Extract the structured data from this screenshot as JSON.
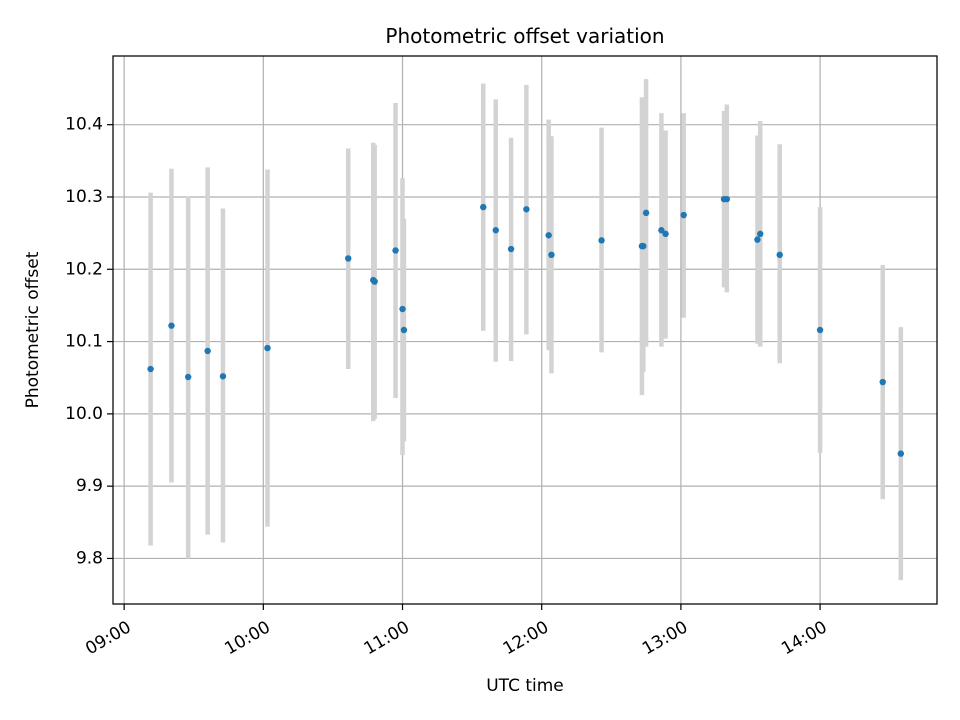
{
  "chart_data": {
    "type": "scatter",
    "title": "Photometric offset variation",
    "xlabel": "UTC time",
    "ylabel": "Photometric offset",
    "xlim_hours": [
      8.92,
      14.84
    ],
    "ylim": [
      9.737,
      10.495
    ],
    "grid": true,
    "x_ticks": [
      {
        "hour": 9,
        "label": "09:00"
      },
      {
        "hour": 10,
        "label": "10:00"
      },
      {
        "hour": 11,
        "label": "11:00"
      },
      {
        "hour": 12,
        "label": "12:00"
      },
      {
        "hour": 13,
        "label": "13:00"
      },
      {
        "hour": 14,
        "label": "14:00"
      }
    ],
    "y_ticks": [
      {
        "value": 9.8,
        "label": "9.8"
      },
      {
        "value": 9.9,
        "label": "9.9"
      },
      {
        "value": 10.0,
        "label": "10.0"
      },
      {
        "value": 10.1,
        "label": "10.1"
      },
      {
        "value": 10.2,
        "label": "10.2"
      },
      {
        "value": 10.3,
        "label": "10.3"
      },
      {
        "value": 10.4,
        "label": "10.4"
      }
    ],
    "colors": {
      "point": "#1f77b4",
      "errorbar": "#d3d3d3",
      "grid": "#b0b0b0",
      "axis": "#000000"
    },
    "points": [
      {
        "t": 9.19,
        "y": 10.062,
        "lo": 9.818,
        "hi": 10.306
      },
      {
        "t": 9.34,
        "y": 10.122,
        "lo": 9.905,
        "hi": 10.339
      },
      {
        "t": 9.46,
        "y": 10.051,
        "lo": 9.8,
        "hi": 10.301
      },
      {
        "t": 9.6,
        "y": 10.087,
        "lo": 9.833,
        "hi": 10.341
      },
      {
        "t": 9.71,
        "y": 10.052,
        "lo": 9.822,
        "hi": 10.284
      },
      {
        "t": 10.03,
        "y": 10.091,
        "lo": 9.844,
        "hi": 10.338
      },
      {
        "t": 10.61,
        "y": 10.215,
        "lo": 10.062,
        "hi": 10.367
      },
      {
        "t": 10.79,
        "y": 10.185,
        "lo": 9.99,
        "hi": 10.375
      },
      {
        "t": 10.8,
        "y": 10.183,
        "lo": 9.993,
        "hi": 10.372
      },
      {
        "t": 10.95,
        "y": 10.226,
        "lo": 10.022,
        "hi": 10.43
      },
      {
        "t": 11.0,
        "y": 10.145,
        "lo": 9.943,
        "hi": 10.326
      },
      {
        "t": 11.01,
        "y": 10.116,
        "lo": 9.962,
        "hi": 10.27
      },
      {
        "t": 11.58,
        "y": 10.286,
        "lo": 10.115,
        "hi": 10.457
      },
      {
        "t": 11.67,
        "y": 10.254,
        "lo": 10.072,
        "hi": 10.435
      },
      {
        "t": 11.78,
        "y": 10.228,
        "lo": 10.073,
        "hi": 10.382
      },
      {
        "t": 11.89,
        "y": 10.283,
        "lo": 10.11,
        "hi": 10.455
      },
      {
        "t": 12.05,
        "y": 10.247,
        "lo": 10.088,
        "hi": 10.407
      },
      {
        "t": 12.07,
        "y": 10.22,
        "lo": 10.056,
        "hi": 10.384
      },
      {
        "t": 12.43,
        "y": 10.24,
        "lo": 10.085,
        "hi": 10.396
      },
      {
        "t": 12.72,
        "y": 10.232,
        "lo": 10.026,
        "hi": 10.438
      },
      {
        "t": 12.73,
        "y": 10.232,
        "lo": 10.058,
        "hi": 10.406
      },
      {
        "t": 12.75,
        "y": 10.278,
        "lo": 10.093,
        "hi": 10.463
      },
      {
        "t": 12.86,
        "y": 10.254,
        "lo": 10.093,
        "hi": 10.416
      },
      {
        "t": 12.89,
        "y": 10.249,
        "lo": 10.104,
        "hi": 10.392
      },
      {
        "t": 13.02,
        "y": 10.275,
        "lo": 10.133,
        "hi": 10.416
      },
      {
        "t": 13.31,
        "y": 10.297,
        "lo": 10.175,
        "hi": 10.419
      },
      {
        "t": 13.33,
        "y": 10.297,
        "lo": 10.168,
        "hi": 10.428
      },
      {
        "t": 13.55,
        "y": 10.241,
        "lo": 10.097,
        "hi": 10.385
      },
      {
        "t": 13.57,
        "y": 10.249,
        "lo": 10.093,
        "hi": 10.405
      },
      {
        "t": 13.71,
        "y": 10.22,
        "lo": 10.07,
        "hi": 10.373
      },
      {
        "t": 14.0,
        "y": 10.116,
        "lo": 9.946,
        "hi": 10.286
      },
      {
        "t": 14.45,
        "y": 10.044,
        "lo": 9.882,
        "hi": 10.206
      },
      {
        "t": 14.58,
        "y": 9.945,
        "lo": 9.77,
        "hi": 10.12
      }
    ]
  }
}
